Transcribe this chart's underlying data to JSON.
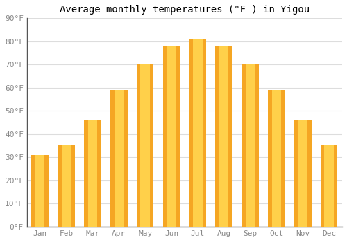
{
  "title": "Average monthly temperatures (°F ) in Yigou",
  "months": [
    "Jan",
    "Feb",
    "Mar",
    "Apr",
    "May",
    "Jun",
    "Jul",
    "Aug",
    "Sep",
    "Oct",
    "Nov",
    "Dec"
  ],
  "values": [
    31,
    35,
    46,
    59,
    70,
    78,
    81,
    78,
    70,
    59,
    46,
    35
  ],
  "bar_color_outer": "#F5A623",
  "bar_color_inner": "#FFD04A",
  "ylim": [
    0,
    90
  ],
  "yticks": [
    0,
    10,
    20,
    30,
    40,
    50,
    60,
    70,
    80,
    90
  ],
  "ytick_labels": [
    "0°F",
    "10°F",
    "20°F",
    "30°F",
    "40°F",
    "50°F",
    "60°F",
    "70°F",
    "80°F",
    "90°F"
  ],
  "background_color": "#FFFFFF",
  "grid_color": "#DDDDDD",
  "title_fontsize": 10,
  "tick_fontsize": 8,
  "font_family": "monospace"
}
